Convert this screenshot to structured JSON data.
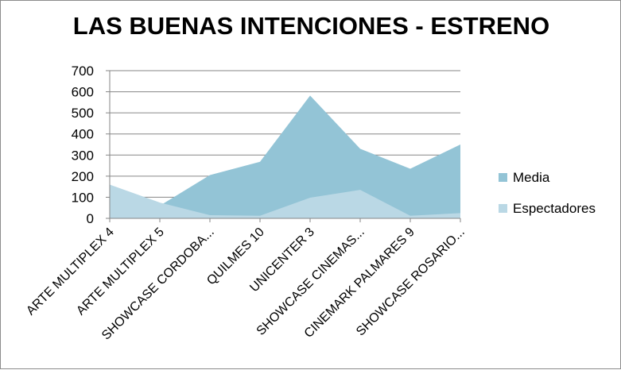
{
  "chart_data": {
    "type": "area",
    "title": "LAS BUENAS INTENCIONES - ESTRENO",
    "categories": [
      "ARTE MULTIPLEX 4",
      "ARTE MULTIPLEX 5",
      "SHOWCASE CORDOBA...",
      "QUILMES 10",
      "UNICENTER 3",
      "SHOWCASE CINEMAS...",
      "CINEMARK PALMARES 9",
      "SHOWCASE ROSARIO..."
    ],
    "series": [
      {
        "name": "Media",
        "values": [
          0,
          60,
          205,
          268,
          582,
          330,
          235,
          350
        ],
        "color": "#93c4d6"
      },
      {
        "name": "Espectadores",
        "values": [
          160,
          75,
          15,
          12,
          98,
          135,
          12,
          25
        ],
        "color": "#bad8e5"
      }
    ],
    "ylim": [
      0,
      700
    ],
    "yticks": [
      0,
      100,
      200,
      300,
      400,
      500,
      600,
      700
    ],
    "grid": true,
    "legend": "right"
  }
}
